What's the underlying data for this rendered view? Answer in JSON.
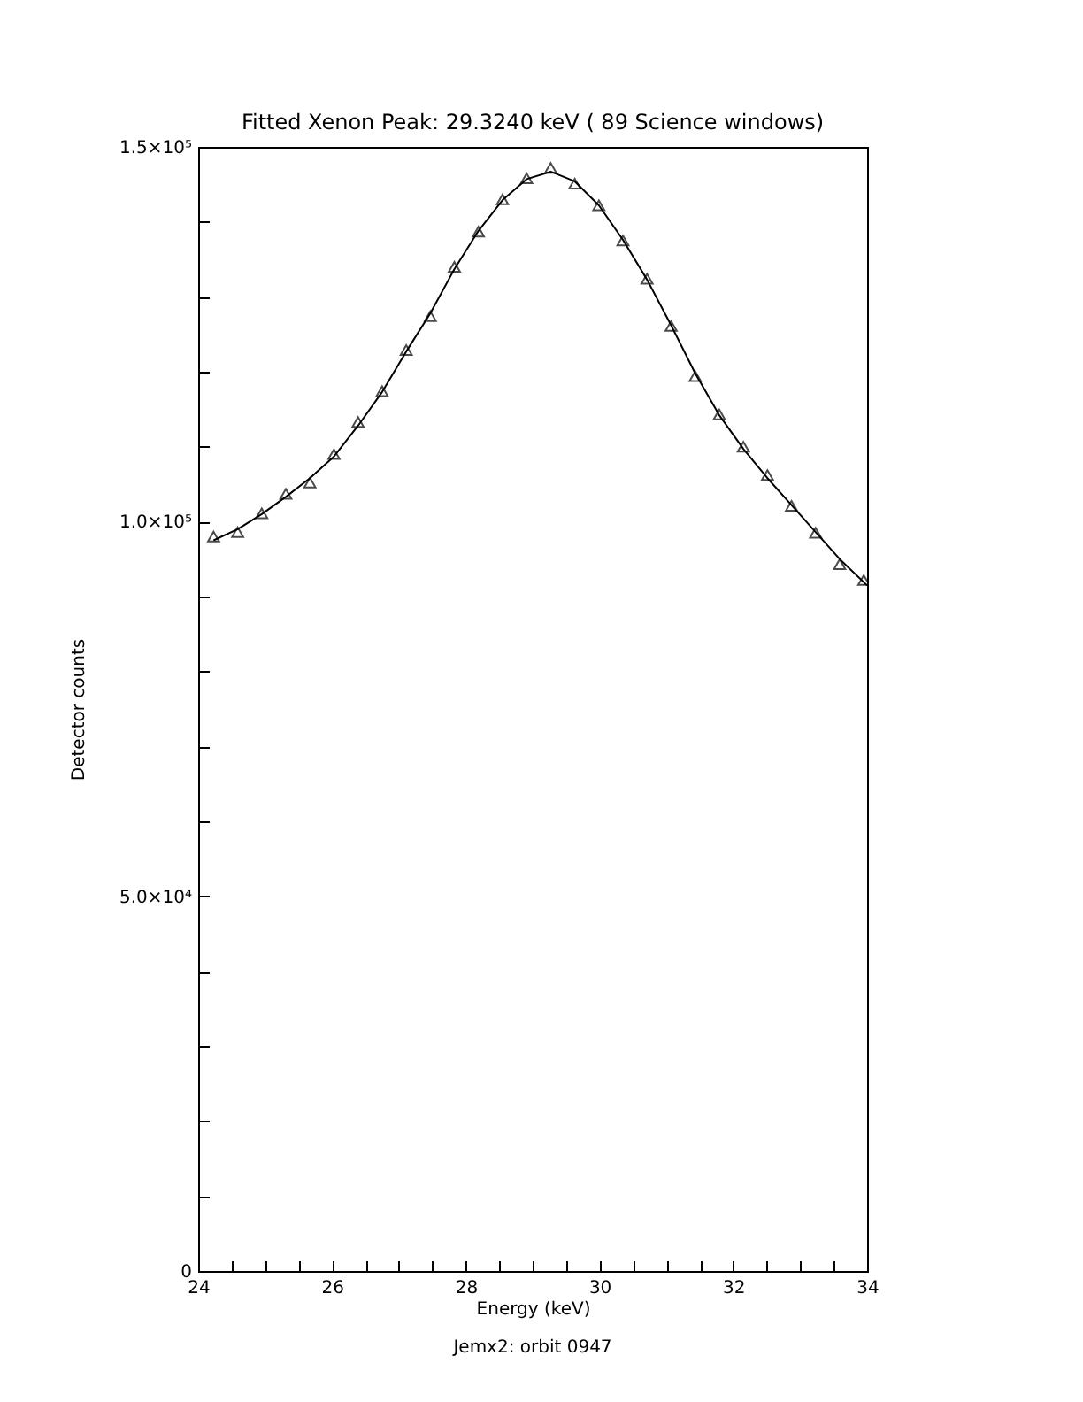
{
  "chart_data": {
    "type": "scatter",
    "title": "Fitted Xenon Peak: 29.3240 keV ( 89 Science windows)",
    "xlabel": "Energy (keV)",
    "ylabel": "Detector counts",
    "annotations": [
      "Jemx2: orbit 0947"
    ],
    "xlim": [
      24,
      34
    ],
    "ylim": [
      0,
      150000
    ],
    "xticks": [
      24,
      {
        "value": 24.5,
        "label": null
      },
      {
        "value": 25,
        "label": null
      },
      {
        "value": 25.5,
        "label": null
      },
      26,
      {
        "value": 26.5,
        "label": null
      },
      {
        "value": 27,
        "label": null
      },
      {
        "value": 27.5,
        "label": null
      },
      28,
      {
        "value": 28.5,
        "label": null
      },
      {
        "value": 29,
        "label": null
      },
      {
        "value": 29.5,
        "label": null
      },
      30,
      {
        "value": 30.5,
        "label": null
      },
      {
        "value": 31,
        "label": null
      },
      {
        "value": 31.5,
        "label": null
      },
      32,
      {
        "value": 32.5,
        "label": null
      },
      {
        "value": 33,
        "label": null
      },
      {
        "value": 33.5,
        "label": null
      },
      34
    ],
    "yticks": [
      0,
      {
        "value": 10000,
        "label": null
      },
      {
        "value": 20000,
        "label": null
      },
      {
        "value": 30000,
        "label": null
      },
      {
        "value": 40000,
        "label": null
      },
      {
        "value": 50000,
        "label": "5.0×10⁴"
      },
      {
        "value": 60000,
        "label": null
      },
      {
        "value": 70000,
        "label": null
      },
      {
        "value": 80000,
        "label": null
      },
      {
        "value": 90000,
        "label": null
      },
      {
        "value": 100000,
        "label": "1.0×10⁵"
      },
      {
        "value": 110000,
        "label": null
      },
      {
        "value": 120000,
        "label": null
      },
      {
        "value": 130000,
        "label": null
      },
      {
        "value": 140000,
        "label": null
      },
      {
        "value": 150000,
        "label": "1.5×10⁵"
      }
    ],
    "grid": false,
    "series": [
      {
        "marker": "triangle",
        "color": "#000000",
        "x": [
          24.23,
          24.59,
          24.95,
          25.31,
          25.67,
          26.03,
          26.39,
          26.75,
          27.11,
          27.47,
          27.83,
          28.19,
          28.55,
          28.91,
          29.27,
          29.63,
          29.99,
          30.35,
          30.71,
          31.07,
          31.43,
          31.79,
          32.15,
          32.51,
          32.87,
          33.23,
          33.59,
          33.95
        ],
        "values": [
          98000,
          98600,
          101100,
          103700,
          105200,
          109000,
          113300,
          117400,
          122900,
          127400,
          134000,
          138700,
          143000,
          145800,
          147200,
          145100,
          142200,
          137500,
          132400,
          126100,
          119400,
          114300,
          110000,
          106200,
          102100,
          98500,
          94300,
          92200
        ]
      },
      {
        "type": "line",
        "marker": "none",
        "line_style": "solid",
        "color": "#000000",
        "x": [
          24.23,
          24.59,
          24.95,
          25.31,
          25.67,
          26.03,
          26.39,
          26.75,
          27.11,
          27.47,
          27.83,
          28.19,
          28.55,
          28.91,
          29.27,
          29.63,
          29.99,
          30.35,
          30.71,
          31.07,
          31.43,
          31.79,
          32.15,
          32.51,
          32.87,
          33.23,
          33.59,
          34
        ],
        "values": [
          97500,
          99000,
          101000,
          103300,
          105800,
          108700,
          112800,
          117300,
          122700,
          127800,
          133700,
          138800,
          142900,
          145700,
          146700,
          145400,
          142200,
          137600,
          132300,
          126200,
          119800,
          114200,
          109700,
          105800,
          102200,
          98600,
          95000,
          91500
        ]
      }
    ]
  }
}
